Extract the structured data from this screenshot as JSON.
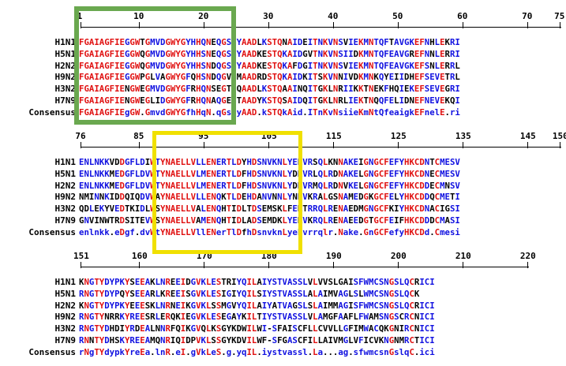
{
  "colors": {
    "identical": "#e01010",
    "similar": "#1010e0",
    "different": "#000000",
    "green_box": "#6aa84f",
    "yellow_box": "#f0e000"
  },
  "blocks": [
    {
      "ruler_numbers": [
        "1",
        "10",
        "20",
        "30",
        "40",
        "50",
        "60",
        "70",
        "75"
      ],
      "rows": [
        {
          "label": "H1N1",
          "seq": "FGAIAGFIEGGWTGMVDGWYGYHHQNEQGSGYAADLKSTQNAIDEITNKVNSVIEKMNTQFTAVGKEFNHLEKRI"
        },
        {
          "label": "H5N1",
          "seq": "FGAIAGFIEGGWQGMVDGWYGYHHSNEQGSGYAADKESTQKAIDGVTNKVNSIIDKMNTQFEAVGREFNNLERRI"
        },
        {
          "label": "H2N2",
          "seq": "FGAIAGFIEGGWQGMVDGWYGYHHSNDQGSGYAADKESTQKAFDGITNKVNSVIEKMNTQFEAVGKEFSNLERRL"
        },
        {
          "label": "H9N2",
          "seq": "FGAIAGFIEGGWPGLVAGWYGFQHSNDQGVGMAADRDSTQKAIDKITSKVNNIVDKMNKQYEIIDHEFSEVETRL"
        },
        {
          "label": "H3N2",
          "seq": "FGAIAGFIENGWEGMVDGWYGFRHQNSEGTGQAADLKSTQAAINQITGKLNRIIKKTNEKFHQIEKEFSEVEGRI"
        },
        {
          "label": "H7N9",
          "seq": "FGAIAGFIENGWEGLIDGWYGFRHQNAQGEGTAADYKSTQSAIDQITGKLNRLIEKTNQQFELIDNEFNEVEKQI"
        },
        {
          "label": "Consensus",
          "seq": "FGAIAGFIEgGW.GmvdGWYGfhHqN.qGsGyAAD.kSTQkAid.ITnKvNsiieKmNtQfeaigkEFnelE.ri"
        }
      ]
    },
    {
      "ruler_numbers": [
        "76",
        "85",
        "95",
        "105",
        "115",
        "125",
        "135",
        "145",
        "150"
      ],
      "rows": [
        {
          "label": "H1N1",
          "seq": "ENLNKKVDDGFLDIWTYNAELLVLLENERTLDYHDSNVKNLYEKVRSQLKNNAKEIGNGCFEFYHKCDNTCMESV"
        },
        {
          "label": "H5N1",
          "seq": "ENLNKKMEDGFLDVWTYNAELLVLMENERTLDFHDSNVKNLYDKVRLQLRDNAKELGNGCFEFYHKCDNECMESV"
        },
        {
          "label": "H2N2",
          "seq": "ENLNKKMEDGFLDVWTYNAELLVLMENERTLDFHDSNVKNLYDKVRMQLRDNVKELGNGCFEFYHKCDDECMNSV"
        },
        {
          "label": "H9N2",
          "seq": "NMINNKIDDQIQDVWAYNAELLVLLENQKTLDEHDANVNNLYNKVKRALGSNAMEDGKGCFELYHKCDDQCMETI"
        },
        {
          "label": "H3N2",
          "seq": "QDLEKYVEDTKIDLWSYNAELLVALENQHTIDLTDSEMSKLFERTRRQLRENAEDMGNGCFKIYHKCDNACIGSI"
        },
        {
          "label": "H7N9",
          "seq": "GNVINWTRDSITEVWSYNAELLVAMENQHTIDLADSEMDKLYERVKRQLRENAEEDGTGCFEIFHKCDDDCMASI"
        },
        {
          "label": "Consensus",
          "seq": "enlnkk.eDgf.dvWtYNAELLVllENerTlDfhDsnvknLyekvrrqlr.Nake.GnGCFefyHKCDd.Cmesi"
        }
      ]
    },
    {
      "ruler_numbers": [
        "151",
        "160",
        "170",
        "180",
        "190",
        "200",
        "210",
        "220"
      ],
      "rows": [
        {
          "label": "H1N1",
          "seq": "KNGTYDYPKYSEEAKLNREEIDGVKLESTRIYQILAIYSTVASSLVLVVSLGAISFWMCSNGSLQCRICI"
        },
        {
          "label": "H5N1",
          "seq": "RNGTYDYPQYSEEARLKREEISGVKLESIGIYQILSIYSTVASSLALAIMVAGLSLWMCSNGSLQCK"
        },
        {
          "label": "H2N2",
          "seq": "KNGTYDYPKYEEESKLNRNEIKGVKLSSMGVYQILAIYATVAGSLSLAIMMAGISFWMCSNGSLQCRICI"
        },
        {
          "label": "H9N2",
          "seq": "RNGTYNRRKYREESRLERQKIEGVKLESEGAYKILTIYSTVASSLVLAMGFAAFLFWAMSNGSCRCNICI"
        },
        {
          "label": "H3N2",
          "seq": "RNGTYDHDIYRDEALNNRFQIKGVQLKSGYKDWILWI-SFAISCFLLCVVLLGFIMWACQKGNIRCNICI"
        },
        {
          "label": "H7N9",
          "seq": "RNNTYDHSKYREEAMQNRIQIDPVKLSSGYKDVILWF-SFGASCFILLAIVMGLVFICVKNGNMRCTICI"
        },
        {
          "label": "Consensus",
          "seq": "rNgTYdypkYreEa.lnR.eI.gVkLeS.g.yqIL.iystvassl.La...ag.sfwmcsnGslqC.ici"
        }
      ]
    }
  ]
}
